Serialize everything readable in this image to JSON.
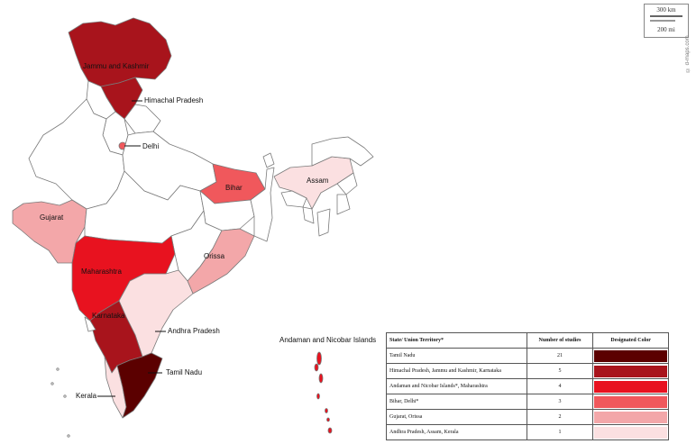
{
  "map": {
    "scale": {
      "km": "300 km",
      "mi": "200 mi"
    },
    "credit": "© d-maps.com",
    "colors": {
      "outline": "#7a7a7a",
      "blank": "#ffffff",
      "level_21": "#5b0000",
      "level_5": "#a8141c",
      "level_4": "#e8121f",
      "level_3": "#f0585c",
      "level_2": "#f3a7a9",
      "level_1": "#fbe0e1"
    },
    "labels": {
      "jk": "Jammu and Kashmir",
      "hp": "Himachal Pradesh",
      "delhi": "Delhi",
      "bihar": "Bihar",
      "assam": "Assam",
      "gujarat": "Gujarat",
      "maharashtra": "Maharashtra",
      "orissa": "Orissa",
      "karnataka": "Karnataka",
      "ap": "Andhra Pradesh",
      "andaman": "Andaman and Nicobar Islands",
      "tn": "Tamil Nadu",
      "kerala": "Kerala"
    }
  },
  "legend": {
    "headers": [
      "State/ Union Territory*",
      "Number of studies",
      "Designated Color"
    ],
    "rows": [
      {
        "states": "Tamil Nadu",
        "count": "21",
        "color": "#5b0000"
      },
      {
        "states": "Himachal Pradesh, Jammu and Kashmir,  Karnataka",
        "count": "5",
        "color": "#a8141c"
      },
      {
        "states": "Andaman and Nicobar Islands*, Maharashtra",
        "count": "4",
        "color": "#e8121f"
      },
      {
        "states": "Bihar, Delhi*",
        "count": "3",
        "color": "#f0585c"
      },
      {
        "states": "Gujarat, Orissa",
        "count": "2",
        "color": "#f3a7a9"
      },
      {
        "states": "Andhra Pradesh,  Assam, Kerala",
        "count": "1",
        "color": "#fbe0e1"
      }
    ]
  }
}
